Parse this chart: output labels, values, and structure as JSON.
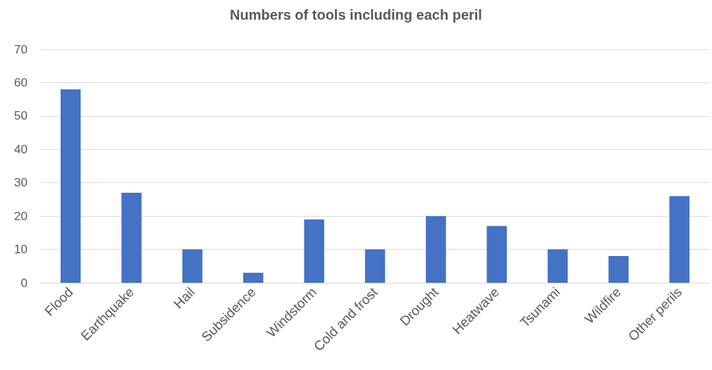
{
  "chart_data": {
    "type": "bar",
    "title": "Numbers of tools including each peril",
    "categories": [
      "Flood",
      "Earthquake",
      "Hail",
      "Subsidence",
      "Windstorm",
      "Cold and frost",
      "Drought",
      "Heatwave",
      "Tsunami",
      "Wildfire",
      "Other perils"
    ],
    "values": [
      58,
      27,
      10,
      3,
      19,
      10,
      20,
      17,
      10,
      8,
      26
    ],
    "color": "#4472c4",
    "ylim": [
      0,
      70
    ],
    "yticks": [
      0,
      10,
      20,
      30,
      40,
      50,
      60,
      70
    ],
    "grid": "y"
  }
}
